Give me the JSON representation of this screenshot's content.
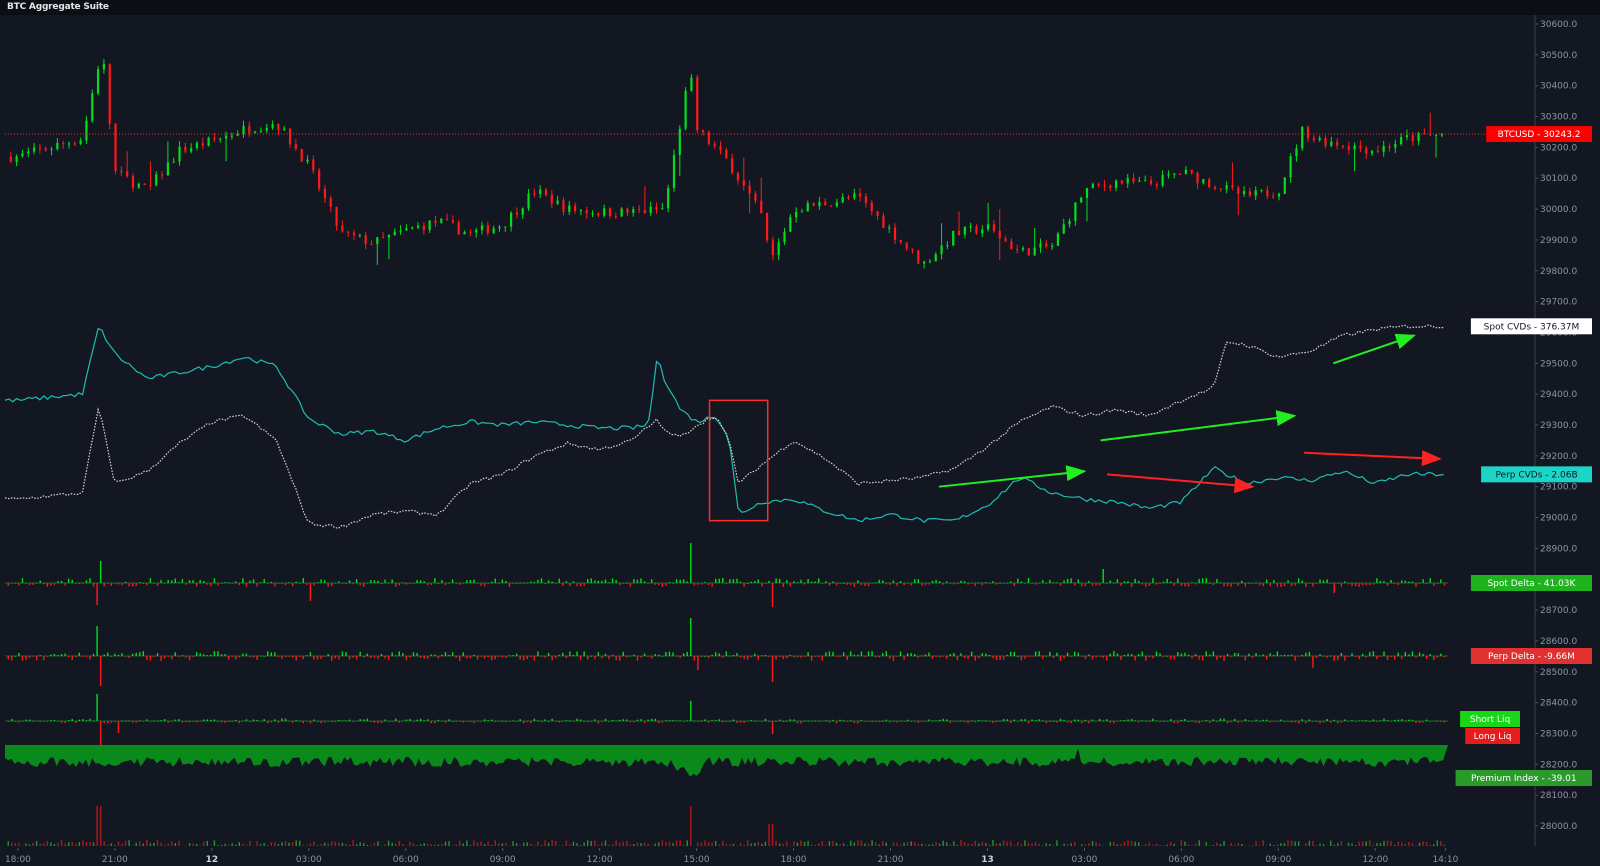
{
  "app": {
    "title": "BTC Aggregate Suite"
  },
  "colors": {
    "background": "#131722",
    "up": "#00e01a",
    "down": "#ff1a1a",
    "cvd_perp": "#1bbfb0",
    "cvd_spot": "#d9d9d9",
    "premium": "#0a8a1a",
    "box": "#ff2a2a"
  },
  "price_axis": {
    "labels": [
      "30600.0",
      "30500.0",
      "30400.0",
      "30300.0",
      "30200.0",
      "30100.0",
      "30000.0",
      "29900.0",
      "29800.0",
      "29700.0",
      "29600.0",
      "29500.0",
      "29400.0",
      "29300.0",
      "29200.0",
      "29100.0",
      "29000.0",
      "28900.0",
      "28800.0",
      "28700.0",
      "28600.0",
      "28500.0",
      "28400.0",
      "28300.0",
      "28200.0",
      "28100.0",
      "28000.0"
    ]
  },
  "time_axis": {
    "labels": [
      {
        "text": "18:00",
        "bold": false
      },
      {
        "text": "21:00",
        "bold": false
      },
      {
        "text": "12",
        "bold": true
      },
      {
        "text": "03:00",
        "bold": false
      },
      {
        "text": "06:00",
        "bold": false
      },
      {
        "text": "09:00",
        "bold": false
      },
      {
        "text": "12:00",
        "bold": false
      },
      {
        "text": "15:00",
        "bold": false
      },
      {
        "text": "18:00",
        "bold": false
      },
      {
        "text": "21:00",
        "bold": false
      },
      {
        "text": "13",
        "bold": true
      },
      {
        "text": "03:00",
        "bold": false
      },
      {
        "text": "06:00",
        "bold": false
      },
      {
        "text": "09:00",
        "bold": false
      },
      {
        "text": "12:00",
        "bold": false
      },
      {
        "text": "14:10",
        "bold": false
      }
    ]
  },
  "badges": {
    "btcusd": "BTCUSD  -  30243.2",
    "spot_cvds": "Spot CVDs  -  376.37M",
    "perp_cvds": "Perp CVDs  -  2.06B",
    "spot_delta": "Spot Delta  -  41.03K",
    "perp_delta": "Perp Delta  -  -9.66M",
    "short_liq": "Short Liq",
    "long_liq": "Long Liq",
    "premium_index": "Premium Index  -  -39.01"
  },
  "chart_data": {
    "type": "line",
    "title": "BTC Aggregate Suite",
    "x_labels": [
      "18:00",
      "21:00",
      "12",
      "03:00",
      "06:00",
      "09:00",
      "12:00",
      "15:00",
      "18:00",
      "21:00",
      "13",
      "03:00",
      "06:00",
      "09:00",
      "12:00",
      "14:10"
    ],
    "y_axis": {
      "min": 28000.0,
      "max": 30600.0,
      "step": 100
    },
    "last_price": 30243.2,
    "series": [
      {
        "name": "BTCUSD",
        "kind": "candlestick",
        "close": [
          [
            18.0,
            30170
          ],
          [
            20.0,
            30230
          ],
          [
            20.6,
            30520
          ],
          [
            21.0,
            30120
          ],
          [
            22.0,
            30060
          ],
          [
            23.0,
            30190
          ],
          [
            24.0,
            30220
          ],
          [
            25.0,
            30260
          ],
          [
            26.0,
            30280
          ],
          [
            27.0,
            30140
          ],
          [
            28.0,
            29920
          ],
          [
            29.0,
            29890
          ],
          [
            30.0,
            29930
          ],
          [
            31.0,
            29960
          ],
          [
            32.0,
            29920
          ],
          [
            33.0,
            29950
          ],
          [
            34.0,
            30060
          ],
          [
            35.0,
            30000
          ],
          [
            36.0,
            29990
          ],
          [
            37.0,
            29990
          ],
          [
            38.0,
            30000
          ],
          [
            38.8,
            30450
          ],
          [
            39.0,
            30260
          ],
          [
            40.0,
            30150
          ],
          [
            41.0,
            29980
          ],
          [
            41.3,
            29830
          ],
          [
            42.0,
            30000
          ],
          [
            43.0,
            30020
          ],
          [
            44.0,
            30040
          ],
          [
            45.0,
            29930
          ],
          [
            46.0,
            29820
          ],
          [
            47.0,
            29920
          ],
          [
            48.0,
            29940
          ],
          [
            49.0,
            29860
          ],
          [
            50.0,
            29880
          ],
          [
            51.0,
            30060
          ],
          [
            52.0,
            30090
          ],
          [
            53.0,
            30080
          ],
          [
            54.0,
            30120
          ],
          [
            55.0,
            30080
          ],
          [
            56.0,
            30040
          ],
          [
            57.0,
            30060
          ],
          [
            57.8,
            30270
          ],
          [
            58.0,
            30230
          ],
          [
            59.0,
            30210
          ],
          [
            60.0,
            30190
          ],
          [
            61.0,
            30230
          ],
          [
            62.0,
            30240
          ]
        ]
      },
      {
        "name": "Perp CVDs",
        "close": [
          [
            18.0,
            29380
          ],
          [
            20.0,
            29400
          ],
          [
            20.5,
            29620
          ],
          [
            21.0,
            29530
          ],
          [
            22.0,
            29450
          ],
          [
            23.0,
            29470
          ],
          [
            24.0,
            29490
          ],
          [
            25.0,
            29520
          ],
          [
            26.0,
            29490
          ],
          [
            27.0,
            29320
          ],
          [
            28.0,
            29270
          ],
          [
            29.0,
            29280
          ],
          [
            30.0,
            29250
          ],
          [
            31.0,
            29290
          ],
          [
            32.0,
            29310
          ],
          [
            33.0,
            29300
          ],
          [
            34.0,
            29310
          ],
          [
            35.0,
            29300
          ],
          [
            36.0,
            29290
          ],
          [
            37.0,
            29290
          ],
          [
            37.5,
            29300
          ],
          [
            37.8,
            29530
          ],
          [
            38.0,
            29450
          ],
          [
            38.5,
            29350
          ],
          [
            39.0,
            29310
          ],
          [
            39.6,
            29330
          ],
          [
            40.0,
            29260
          ],
          [
            40.3,
            29010
          ],
          [
            41.0,
            29050
          ],
          [
            42.0,
            29060
          ],
          [
            43.0,
            29020
          ],
          [
            44.0,
            28990
          ],
          [
            45.0,
            29010
          ],
          [
            46.0,
            28990
          ],
          [
            47.0,
            28990
          ],
          [
            48.0,
            29040
          ],
          [
            49.0,
            29130
          ],
          [
            50.0,
            29080
          ],
          [
            51.0,
            29060
          ],
          [
            52.0,
            29050
          ],
          [
            53.0,
            29030
          ],
          [
            54.0,
            29050
          ],
          [
            55.0,
            29160
          ],
          [
            56.0,
            29110
          ],
          [
            57.0,
            29130
          ],
          [
            58.0,
            29120
          ],
          [
            59.0,
            29150
          ],
          [
            60.0,
            29110
          ],
          [
            61.0,
            29140
          ]
        ]
      },
      {
        "name": "Spot CVDs",
        "close": [
          [
            18.0,
            29060
          ],
          [
            20.0,
            29080
          ],
          [
            20.5,
            29360
          ],
          [
            21.0,
            29110
          ],
          [
            22.0,
            29150
          ],
          [
            23.0,
            29240
          ],
          [
            24.0,
            29310
          ],
          [
            25.0,
            29330
          ],
          [
            26.0,
            29250
          ],
          [
            27.0,
            28980
          ],
          [
            28.0,
            28970
          ],
          [
            29.0,
            29010
          ],
          [
            30.0,
            29020
          ],
          [
            31.0,
            29010
          ],
          [
            32.0,
            29110
          ],
          [
            33.0,
            29140
          ],
          [
            34.0,
            29200
          ],
          [
            35.0,
            29240
          ],
          [
            36.0,
            29220
          ],
          [
            37.0,
            29250
          ],
          [
            37.8,
            29320
          ],
          [
            38.0,
            29280
          ],
          [
            38.5,
            29260
          ],
          [
            39.0,
            29300
          ],
          [
            39.6,
            29330
          ],
          [
            40.0,
            29250
          ],
          [
            40.3,
            29110
          ],
          [
            41.0,
            29170
          ],
          [
            42.0,
            29250
          ],
          [
            43.0,
            29190
          ],
          [
            44.0,
            29110
          ],
          [
            45.0,
            29120
          ],
          [
            46.0,
            29130
          ],
          [
            47.0,
            29160
          ],
          [
            48.0,
            29230
          ],
          [
            49.0,
            29310
          ],
          [
            50.0,
            29360
          ],
          [
            51.0,
            29330
          ],
          [
            52.0,
            29350
          ],
          [
            53.0,
            29330
          ],
          [
            54.0,
            29380
          ],
          [
            55.0,
            29420
          ],
          [
            55.4,
            29570
          ],
          [
            56.0,
            29560
          ],
          [
            57.0,
            29520
          ],
          [
            58.0,
            29540
          ],
          [
            59.0,
            29590
          ],
          [
            60.0,
            29610
          ],
          [
            61.0,
            29620
          ]
        ]
      },
      {
        "name": "Spot Delta",
        "kind": "histogram",
        "last": "41.03K"
      },
      {
        "name": "Perp Delta",
        "kind": "histogram",
        "last": "-9.66M"
      },
      {
        "name": "Short Liq",
        "kind": "histogram"
      },
      {
        "name": "Long Liq",
        "kind": "histogram"
      },
      {
        "name": "Premium Index",
        "kind": "area",
        "last": -39.01
      }
    ],
    "annotations": {
      "highlight_box": {
        "x_from": 39.4,
        "x_to": 41.2,
        "y_from": 28990,
        "y_to": 29380
      },
      "arrows": [
        {
          "color": "green",
          "from": [
            46.5,
            29100
          ],
          "to": [
            51.0,
            29150
          ]
        },
        {
          "color": "green",
          "from": [
            51.5,
            29250
          ],
          "to": [
            57.5,
            29330
          ]
        },
        {
          "color": "green",
          "from": [
            58.7,
            29500
          ],
          "to": [
            61.2,
            29590
          ]
        },
        {
          "color": "red",
          "from": [
            51.7,
            29140
          ],
          "to": [
            56.2,
            29100
          ]
        },
        {
          "color": "red",
          "from": [
            57.8,
            29210
          ],
          "to": [
            62.0,
            29190
          ]
        }
      ]
    },
    "grid": false
  }
}
